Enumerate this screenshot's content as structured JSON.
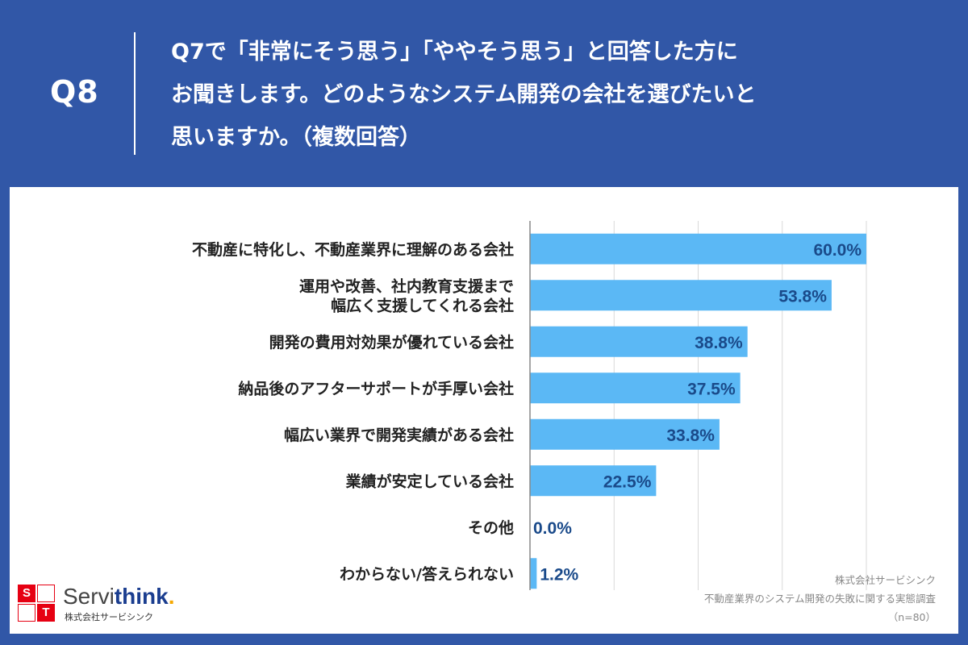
{
  "header": {
    "q_label": "Q8",
    "question_lines": [
      "Q7で「非常にそう思う」「ややそう思う」と回答した方に",
      "お聞きします。どのようなシステム開発の会社を選びたいと",
      "思いますか。（複数回答）"
    ]
  },
  "chart_data": {
    "type": "bar",
    "orientation": "horizontal",
    "categories": [
      "不動産に特化し、不動産業界に理解のある会社",
      "運用や改善、社内教育支援まで\n幅広く支援してくれる会社",
      "開発の費用対効果が優れている会社",
      "納品後のアフターサポートが手厚い会社",
      "幅広い業界で開発実績がある会社",
      "業績が安定している会社",
      "その他",
      "わからない/答えられない"
    ],
    "values": [
      60.0,
      53.8,
      38.8,
      37.5,
      33.8,
      22.5,
      0.0,
      1.2
    ],
    "value_labels": [
      "60.0%",
      "53.8%",
      "38.8%",
      "37.5%",
      "33.8%",
      "22.5%",
      "0.0%",
      "1.2%"
    ],
    "xlim": [
      0,
      60
    ],
    "grid": true,
    "bar_color": "#5bb8f5",
    "label_color": "#1a4a8a"
  },
  "logo": {
    "box_letters": [
      "S",
      "T"
    ],
    "word_main": "Servi",
    "word_bold": "think",
    "word_dot": ".",
    "sub": "株式会社サービシンク"
  },
  "source": {
    "company": "株式会社サービシンク",
    "survey": "不動産業界のシステム開発の失敗に関する実態調査",
    "sample": "（n=80）"
  },
  "colors": {
    "background": "#3157a7",
    "panel": "#ffffff"
  }
}
